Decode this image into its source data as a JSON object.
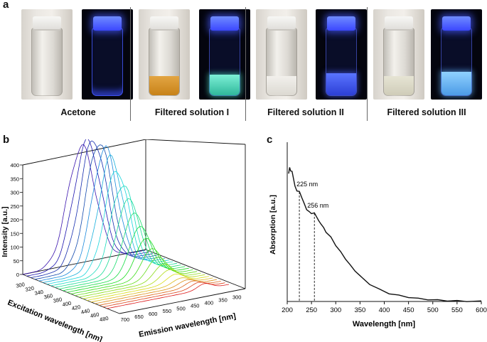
{
  "panels": {
    "a": "a",
    "b": "b",
    "c": "c"
  },
  "panel_a": {
    "labels": [
      "Acetone",
      "Filtered solution I",
      "Filtered solution II",
      "Filtered solution III"
    ]
  },
  "panel_b": {
    "ylabel": "Intensity [a.u.]",
    "xlabel": "Excitation wavelength [nm]",
    "zlabel": "Emission wavelength [nm]",
    "intensity_ticks": [
      "0",
      "50",
      "100",
      "150",
      "200",
      "250",
      "300",
      "350",
      "400"
    ],
    "excitation_ticks": [
      "300",
      "320",
      "340",
      "360",
      "380",
      "400",
      "420",
      "440",
      "460",
      "480"
    ],
    "emission_ticks": [
      "700",
      "650",
      "600",
      "550",
      "500",
      "450",
      "400",
      "350",
      "300"
    ]
  },
  "chart_data": [
    {
      "type": "line",
      "xlabel": "Wavelength [nm]",
      "ylabel": "Absorption [a.u.]",
      "xlim": [
        200,
        600
      ],
      "xticks": [
        "200",
        "250",
        "300",
        "350",
        "400",
        "450",
        "500",
        "550",
        "600"
      ],
      "x": [
        203,
        205,
        207,
        210,
        213,
        216,
        220,
        225,
        230,
        235,
        240,
        245,
        250,
        256,
        260,
        265,
        270,
        275,
        280,
        290,
        300,
        310,
        320,
        330,
        340,
        350,
        370,
        390,
        410,
        430,
        450,
        470,
        490,
        510,
        530,
        550,
        570,
        600
      ],
      "y": [
        0.96,
        1.0,
        0.98,
        0.97,
        0.92,
        0.86,
        0.83,
        0.82,
        0.78,
        0.73,
        0.69,
        0.67,
        0.66,
        0.66,
        0.64,
        0.6,
        0.58,
        0.55,
        0.52,
        0.48,
        0.42,
        0.37,
        0.32,
        0.27,
        0.23,
        0.19,
        0.13,
        0.09,
        0.06,
        0.045,
        0.032,
        0.022,
        0.015,
        0.01,
        0.006,
        0.004,
        0.002,
        0.001
      ],
      "annotations": [
        {
          "label": "225 nm",
          "x": 225
        },
        {
          "label": "256 nm",
          "x": 256
        }
      ]
    }
  ]
}
